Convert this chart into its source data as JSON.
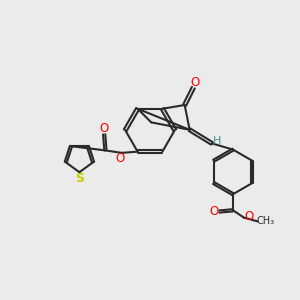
{
  "bg_color": "#ebebeb",
  "bond_color": "#2a2a2a",
  "bond_width": 1.5,
  "atom_colors": {
    "O": "#ff0000",
    "S": "#cccc00",
    "H": "#4a9090",
    "C": "#2a2a2a"
  }
}
